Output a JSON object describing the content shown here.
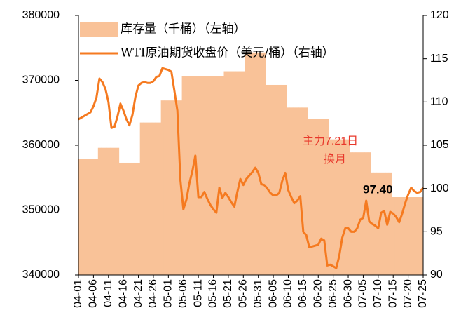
{
  "chart_data": {
    "type": "bar_line",
    "categories": [
      "04-01",
      null,
      null,
      null,
      null,
      "04-06",
      null,
      null,
      null,
      null,
      "04-11",
      null,
      null,
      null,
      null,
      "04-16",
      null,
      null,
      null,
      null,
      "04-21",
      null,
      null,
      null,
      null,
      "04-26",
      null,
      null,
      null,
      null,
      "05-01",
      null,
      null,
      null,
      null,
      "05-06",
      null,
      null,
      null,
      null,
      "05-11",
      null,
      null,
      null,
      null,
      "05-16",
      null,
      null,
      null,
      null,
      "05-21",
      null,
      null,
      null,
      null,
      "05-26",
      null,
      null,
      null,
      null,
      "05-31",
      null,
      null,
      null,
      null,
      "06-05",
      null,
      null,
      null,
      null,
      "06-10",
      null,
      null,
      null,
      null,
      "06-15",
      null,
      null,
      null,
      null,
      "06-20",
      null,
      null,
      null,
      null,
      "06-25",
      null,
      null,
      null,
      null,
      "06-30",
      null,
      null,
      null,
      null,
      "07-05",
      null,
      null,
      null,
      null,
      "07-10",
      null,
      null,
      null,
      null,
      "07-15",
      null,
      null,
      null,
      null,
      "07-20",
      null,
      null,
      null,
      null,
      "07-25"
    ],
    "series": [
      {
        "name": "库存量（千桶）（左轴）",
        "kind": "area",
        "color": "#F9C298",
        "axis": "y",
        "values": [
          357900,
          357900,
          357900,
          357900,
          357900,
          357900,
          357900,
          359600,
          359600,
          359600,
          359600,
          359600,
          359600,
          359600,
          357300,
          357300,
          357300,
          357300,
          357300,
          357300,
          357300,
          363500,
          363500,
          363500,
          363500,
          363500,
          363500,
          363500,
          366900,
          366900,
          366900,
          366900,
          366900,
          366900,
          366900,
          370700,
          370700,
          370700,
          370700,
          370700,
          370700,
          370700,
          370700,
          370700,
          370700,
          370700,
          370700,
          370700,
          370700,
          371400,
          371400,
          371400,
          371400,
          371400,
          371400,
          371400,
          374300,
          374300,
          374300,
          374300,
          374300,
          374300,
          374300,
          369300,
          369300,
          369300,
          369300,
          369300,
          369300,
          369300,
          365800,
          365800,
          365800,
          365800,
          365800,
          365800,
          365800,
          364100,
          364100,
          364100,
          364100,
          364100,
          364100,
          364100,
          360900,
          360900,
          360900,
          360900,
          360900,
          360900,
          360900,
          358900,
          358900,
          358900,
          358900,
          358900,
          358900,
          358900,
          355800,
          355800,
          355800,
          355800,
          355800,
          355800,
          355800,
          352000,
          352000,
          352000,
          352000,
          352000,
          352000,
          352000,
          352000,
          352000,
          352000,
          352000
        ]
      },
      {
        "name": "WTI原油期货收盘价（美元/桶）（右轴）",
        "kind": "line",
        "color": "#F57A20",
        "axis": "y2",
        "values": [
          108.0,
          108.2,
          108.4,
          108.6,
          108.8,
          109.5,
          110.5,
          112.7,
          112.3,
          111.5,
          110.0,
          107.0,
          107.1,
          108.3,
          109.8,
          109.0,
          108.0,
          107.3,
          108.5,
          110.6,
          111.9,
          112.2,
          112.3,
          112.2,
          112.2,
          112.4,
          112.9,
          113.0,
          113.9,
          113.8,
          113.7,
          113.5,
          111.3,
          109.0,
          101.0,
          97.6,
          98.7,
          100.6,
          102.0,
          103.8,
          99.0,
          99.0,
          99.6,
          98.8,
          98.1,
          97.6,
          97.2,
          100.1,
          98.9,
          99.5,
          99.0,
          98.4,
          97.9,
          99.6,
          101.1,
          100.4,
          101.1,
          101.5,
          101.9,
          102.4,
          101.8,
          100.5,
          100.4,
          100.0,
          99.5,
          99.2,
          99.2,
          99.5,
          100.9,
          101.8,
          99.8,
          99.0,
          98.3,
          98.6,
          99.1,
          95.0,
          94.6,
          93.2,
          93.3,
          93.4,
          93.5,
          94.2,
          94.0,
          91.1,
          91.2,
          91.0,
          90.8,
          92.2,
          94.3,
          95.4,
          95.4,
          95.0,
          95.0,
          95.4,
          96.4,
          96.6,
          98.6,
          96.2,
          95.9,
          95.7,
          95.4,
          97.2,
          97.4,
          95.8,
          97.3,
          97.1,
          96.7,
          96.1,
          97.1,
          98.3,
          99.3,
          100.1,
          99.7,
          99.5,
          99.6,
          100.1
        ]
      }
    ],
    "ylim": [
      340000,
      380000
    ],
    "yticks": [
      340000,
      350000,
      360000,
      370000,
      380000
    ],
    "y2lim": [
      90,
      120
    ],
    "y2ticks": [
      90,
      95,
      100,
      105,
      110,
      115,
      120
    ],
    "legend": "upper left",
    "annotations": [
      {
        "text": "97.40",
        "color": "#000000"
      },
      {
        "text": "主力7.21日",
        "color": "#E8382B"
      },
      {
        "text": "换月",
        "color": "#E8382B"
      }
    ]
  }
}
